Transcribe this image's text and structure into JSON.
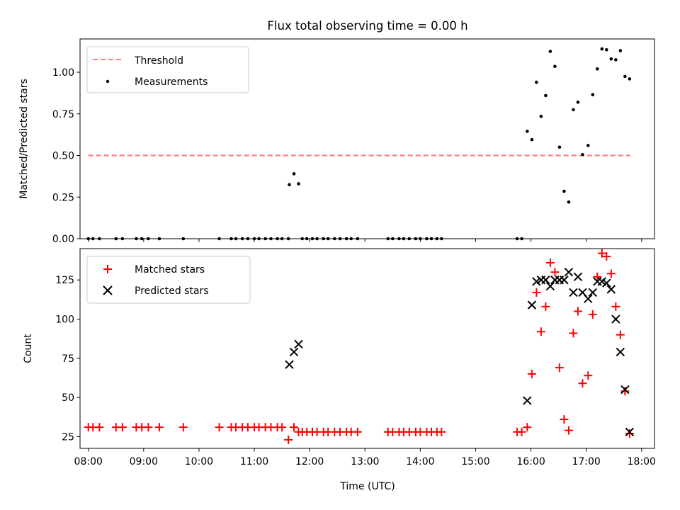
{
  "figure": {
    "title": "Flux total observing time = 0.00 h",
    "xlabel": "Time (UTC)"
  },
  "chart_data": [
    {
      "type": "scatter",
      "ylabel": "Matched/Predicted stars",
      "xlim": [
        "07:51",
        "18:14"
      ],
      "ylim": [
        0,
        1.2
      ],
      "xticks": [
        "08:00",
        "09:00",
        "10:00",
        "11:00",
        "12:00",
        "13:00",
        "14:00",
        "15:00",
        "16:00",
        "17:00",
        "18:00"
      ],
      "yticks": [
        "0.00",
        "0.25",
        "0.50",
        "0.75",
        "1.00"
      ],
      "show_xticklabels": false,
      "legend_position": "upper left",
      "legend": [
        "Threshold",
        "Measurements"
      ],
      "threshold": {
        "name": "Threshold",
        "value": 0.5,
        "x": [
          "08:00",
          "17:48"
        ],
        "color": "#ff7a7a",
        "style": "dashed"
      },
      "series": [
        {
          "name": "Measurements",
          "color": "#000000",
          "marker": "dot",
          "points": [
            [
              "08:00",
              0
            ],
            [
              "08:05",
              0
            ],
            [
              "08:12",
              0
            ],
            [
              "08:30",
              0
            ],
            [
              "08:37",
              0
            ],
            [
              "08:52",
              0
            ],
            [
              "08:58",
              0
            ],
            [
              "09:05",
              0
            ],
            [
              "09:17",
              0
            ],
            [
              "09:43",
              0
            ],
            [
              "10:22",
              0
            ],
            [
              "10:35",
              0
            ],
            [
              "10:40",
              0
            ],
            [
              "10:47",
              0
            ],
            [
              "10:53",
              0
            ],
            [
              "11:00",
              0
            ],
            [
              "11:05",
              0
            ],
            [
              "11:12",
              0
            ],
            [
              "11:18",
              0
            ],
            [
              "11:25",
              0
            ],
            [
              "11:30",
              0
            ],
            [
              "11:37",
              0
            ],
            [
              "11:38",
              0.325
            ],
            [
              "11:43",
              0.39
            ],
            [
              "11:48",
              0.33
            ],
            [
              "11:52",
              0
            ],
            [
              "11:57",
              0
            ],
            [
              "12:03",
              0
            ],
            [
              "12:08",
              0
            ],
            [
              "12:15",
              0
            ],
            [
              "12:20",
              0
            ],
            [
              "12:27",
              0
            ],
            [
              "12:33",
              0
            ],
            [
              "12:40",
              0
            ],
            [
              "12:45",
              0
            ],
            [
              "12:52",
              0
            ],
            [
              "13:25",
              0
            ],
            [
              "13:30",
              0
            ],
            [
              "13:37",
              0
            ],
            [
              "13:42",
              0
            ],
            [
              "13:48",
              0
            ],
            [
              "13:55",
              0
            ],
            [
              "14:00",
              0
            ],
            [
              "14:07",
              0
            ],
            [
              "14:12",
              0
            ],
            [
              "14:18",
              0
            ],
            [
              "14:23",
              0
            ],
            [
              "15:45",
              0
            ],
            [
              "15:50",
              0
            ],
            [
              "15:56",
              0.645
            ],
            [
              "16:01",
              0.595
            ],
            [
              "16:06",
              0.94
            ],
            [
              "16:11",
              0.735
            ],
            [
              "16:16",
              0.86
            ],
            [
              "16:21",
              1.125
            ],
            [
              "16:26",
              1.035
            ],
            [
              "16:31",
              0.55
            ],
            [
              "16:36",
              0.285
            ],
            [
              "16:41",
              0.22
            ],
            [
              "16:46",
              0.775
            ],
            [
              "16:51",
              0.82
            ],
            [
              "16:56",
              0.505
            ],
            [
              "17:02",
              0.56
            ],
            [
              "17:07",
              0.865
            ],
            [
              "17:12",
              1.02
            ],
            [
              "17:17",
              1.14
            ],
            [
              "17:22",
              1.135
            ],
            [
              "17:27",
              1.08
            ],
            [
              "17:32",
              1.075
            ],
            [
              "17:37",
              1.13
            ],
            [
              "17:42",
              0.975
            ],
            [
              "17:47",
              0.96
            ]
          ]
        }
      ]
    },
    {
      "type": "scatter",
      "ylabel": "Count",
      "xlim": [
        "07:51",
        "18:14"
      ],
      "ylim": [
        17.5,
        145
      ],
      "xticks": [
        "08:00",
        "09:00",
        "10:00",
        "11:00",
        "12:00",
        "13:00",
        "14:00",
        "15:00",
        "16:00",
        "17:00",
        "18:00"
      ],
      "yticks": [
        25,
        50,
        75,
        100,
        125
      ],
      "legend_position": "upper left",
      "legend": [
        "Matched stars",
        "Predicted stars"
      ],
      "series": [
        {
          "name": "Matched stars",
          "color": "#ff0000",
          "marker": "plus",
          "points": [
            [
              "08:00",
              31
            ],
            [
              "08:05",
              31
            ],
            [
              "08:12",
              31
            ],
            [
              "08:30",
              31
            ],
            [
              "08:37",
              31
            ],
            [
              "08:52",
              31
            ],
            [
              "08:58",
              31
            ],
            [
              "09:05",
              31
            ],
            [
              "09:17",
              31
            ],
            [
              "09:43",
              31
            ],
            [
              "10:22",
              31
            ],
            [
              "10:35",
              31
            ],
            [
              "10:40",
              31
            ],
            [
              "10:47",
              31
            ],
            [
              "10:53",
              31
            ],
            [
              "11:00",
              31
            ],
            [
              "11:05",
              31
            ],
            [
              "11:12",
              31
            ],
            [
              "11:18",
              31
            ],
            [
              "11:25",
              31
            ],
            [
              "11:30",
              31
            ],
            [
              "11:37",
              23
            ],
            [
              "11:43",
              31
            ],
            [
              "11:48",
              28
            ],
            [
              "11:52",
              28
            ],
            [
              "11:57",
              28
            ],
            [
              "12:03",
              28
            ],
            [
              "12:08",
              28
            ],
            [
              "12:15",
              28
            ],
            [
              "12:20",
              28
            ],
            [
              "12:27",
              28
            ],
            [
              "12:33",
              28
            ],
            [
              "12:40",
              28
            ],
            [
              "12:45",
              28
            ],
            [
              "12:52",
              28
            ],
            [
              "13:25",
              28
            ],
            [
              "13:30",
              28
            ],
            [
              "13:37",
              28
            ],
            [
              "13:42",
              28
            ],
            [
              "13:48",
              28
            ],
            [
              "13:55",
              28
            ],
            [
              "14:00",
              28
            ],
            [
              "14:07",
              28
            ],
            [
              "14:12",
              28
            ],
            [
              "14:18",
              28
            ],
            [
              "14:23",
              28
            ],
            [
              "15:45",
              28
            ],
            [
              "15:50",
              28
            ],
            [
              "15:56",
              31
            ],
            [
              "16:01",
              65
            ],
            [
              "16:06",
              117
            ],
            [
              "16:11",
              92
            ],
            [
              "16:16",
              108
            ],
            [
              "16:21",
              136
            ],
            [
              "16:26",
              130
            ],
            [
              "16:31",
              69
            ],
            [
              "16:36",
              36
            ],
            [
              "16:41",
              29
            ],
            [
              "16:46",
              91
            ],
            [
              "16:51",
              105
            ],
            [
              "16:56",
              59
            ],
            [
              "17:02",
              64
            ],
            [
              "17:07",
              103
            ],
            [
              "17:12",
              127
            ],
            [
              "17:17",
              142
            ],
            [
              "17:22",
              140
            ],
            [
              "17:27",
              129
            ],
            [
              "17:32",
              108
            ],
            [
              "17:37",
              90
            ],
            [
              "17:42",
              54
            ],
            [
              "17:47",
              27
            ]
          ]
        },
        {
          "name": "Predicted stars",
          "color": "#000000",
          "marker": "x",
          "points": [
            [
              "11:38",
              71
            ],
            [
              "11:43",
              79
            ],
            [
              "11:48",
              84
            ],
            [
              "15:56",
              48
            ],
            [
              "16:01",
              109
            ],
            [
              "16:06",
              124
            ],
            [
              "16:11",
              125
            ],
            [
              "16:16",
              125
            ],
            [
              "16:21",
              121
            ],
            [
              "16:26",
              125
            ],
            [
              "16:31",
              125
            ],
            [
              "16:36",
              125
            ],
            [
              "16:41",
              130
            ],
            [
              "16:46",
              117
            ],
            [
              "16:51",
              127
            ],
            [
              "16:56",
              117
            ],
            [
              "17:02",
              113
            ],
            [
              "17:07",
              117
            ],
            [
              "17:12",
              124
            ],
            [
              "17:17",
              124
            ],
            [
              "17:22",
              123
            ],
            [
              "17:27",
              119
            ],
            [
              "17:32",
              100
            ],
            [
              "17:37",
              79
            ],
            [
              "17:42",
              55
            ],
            [
              "17:47",
              28
            ]
          ]
        }
      ]
    }
  ]
}
